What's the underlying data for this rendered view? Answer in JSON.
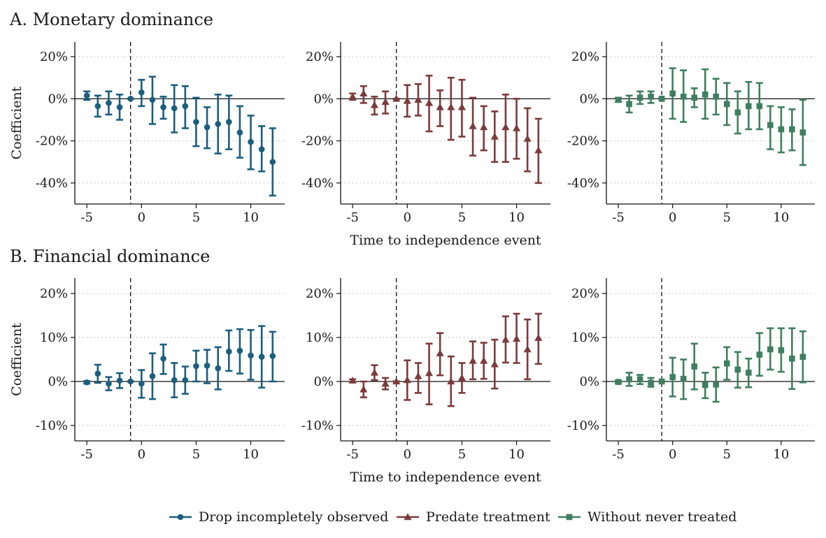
{
  "figure": {
    "panels": [
      {
        "label": "A. Monetary dominance",
        "xlabel": "Time to independence event",
        "ylabel": "Coefficient"
      },
      {
        "label": "B. Financial dominance",
        "xlabel": "Time to independence event",
        "ylabel": "Coefficient"
      }
    ],
    "legend": {
      "placement": "bottom-center",
      "items": [
        {
          "label": "Drop incompletely observed",
          "color": "#1b5e7e",
          "marker": "circle"
        },
        {
          "label": "Predate treatment",
          "color": "#7c3b3b",
          "marker": "triangle"
        },
        {
          "label": "Without never treated",
          "color": "#3f7f5f",
          "marker": "square"
        }
      ]
    }
  },
  "chart_data": [
    {
      "type": "scatter",
      "row": 0,
      "col": 0,
      "ylabel": "Coefficient",
      "xlabel": "",
      "xlim": [
        -6.1,
        13.1
      ],
      "ylim": [
        -50,
        27
      ],
      "xticks": [
        -5,
        0,
        5,
        10
      ],
      "yticks": [
        20,
        0,
        -20,
        -40
      ],
      "yticklabels": [
        "20%",
        "0%",
        "-20%",
        "-40%"
      ],
      "event_line_x": -1,
      "grid": "horizontal-dotted",
      "series": [
        {
          "name": "Drop incompletely observed",
          "color": "#1b5e7e",
          "marker": "circle",
          "x": [
            -5,
            -4,
            -3,
            -2,
            -1,
            0,
            1,
            2,
            3,
            4,
            5,
            6,
            7,
            8,
            9,
            10,
            11,
            12
          ],
          "y": [
            1.5,
            -3.5,
            -2,
            -4,
            0,
            3,
            -0.5,
            -4,
            -4.5,
            -3.5,
            -11,
            -13.5,
            -12,
            -11,
            -16,
            -20.5,
            -24,
            -30
          ],
          "lo": [
            -0.5,
            -8.5,
            -7.5,
            -10,
            0,
            -3.5,
            -12,
            -9.5,
            -16,
            -14,
            -22.5,
            -23.5,
            -26,
            -24,
            -28,
            -33.5,
            -34.5,
            -46
          ],
          "hi": [
            3.5,
            1.5,
            3.5,
            2,
            0,
            9,
            10.5,
            1,
            6.5,
            6,
            0.5,
            -4,
            2,
            1.5,
            -3.5,
            -8,
            -13,
            -14
          ]
        }
      ]
    },
    {
      "type": "scatter",
      "row": 0,
      "col": 1,
      "ylabel": "",
      "xlabel": "Time to independence event",
      "xlim": [
        -6.1,
        13.1
      ],
      "ylim": [
        -50,
        27
      ],
      "xticks": [
        -5,
        0,
        5,
        10
      ],
      "yticks": [
        20,
        0,
        -20,
        -40
      ],
      "yticklabels": [
        "20%",
        "0%",
        "-20%",
        "-40%"
      ],
      "event_line_x": -1,
      "grid": "horizontal-dotted",
      "series": [
        {
          "name": "Predate treatment",
          "color": "#7c3b3b",
          "marker": "triangle",
          "x": [
            -5,
            -4,
            -3,
            -2,
            -1,
            0,
            1,
            2,
            3,
            4,
            5,
            6,
            7,
            8,
            9,
            10,
            11,
            12
          ],
          "y": [
            1,
            2.5,
            -3,
            -1.5,
            0,
            -1,
            -0.5,
            -2,
            -4,
            -4,
            -4,
            -13,
            -13.5,
            -18,
            -13.5,
            -14,
            -19,
            -24.5
          ],
          "lo": [
            -0.5,
            -2,
            -7.5,
            -7,
            0,
            -8.5,
            -8,
            -15.5,
            -13,
            -19.5,
            -18,
            -27,
            -24.5,
            -30,
            -30,
            -28.5,
            -34.5,
            -40
          ],
          "hi": [
            2.5,
            6,
            1,
            3.5,
            0,
            6.5,
            7,
            11,
            4,
            10,
            9,
            0.5,
            -3.5,
            -6,
            2,
            0,
            -4.5,
            -9.5
          ]
        }
      ]
    },
    {
      "type": "scatter",
      "row": 0,
      "col": 2,
      "ylabel": "",
      "xlabel": "",
      "xlim": [
        -6.1,
        13.1
      ],
      "ylim": [
        -50,
        27
      ],
      "xticks": [
        -5,
        0,
        5,
        10
      ],
      "yticks": [
        20,
        0,
        -20,
        -40
      ],
      "yticklabels": [
        "20%",
        "0%",
        "-20%",
        "-40%"
      ],
      "event_line_x": -1,
      "grid": "horizontal-dotted",
      "series": [
        {
          "name": "Without never treated",
          "color": "#3f7f5f",
          "marker": "square",
          "x": [
            -5,
            -4,
            -3,
            -2,
            -1,
            0,
            1,
            2,
            3,
            4,
            5,
            6,
            7,
            8,
            9,
            10,
            11,
            12
          ],
          "y": [
            -0.5,
            -2.5,
            0.5,
            1,
            0,
            2.5,
            1,
            0.5,
            2,
            1,
            -2.5,
            -6.5,
            -3.5,
            -3.5,
            -12.5,
            -14.5,
            -14.5,
            -16
          ],
          "lo": [
            -1.5,
            -6.5,
            -2.5,
            -2,
            0,
            -9.5,
            -11,
            -4,
            -9.5,
            -7.5,
            -12.5,
            -16.5,
            -14.5,
            -14.5,
            -24,
            -25.5,
            -24.5,
            -31.5
          ],
          "hi": [
            0.5,
            1.5,
            3.5,
            3.5,
            0,
            14.5,
            13.5,
            5,
            14,
            9.5,
            7.5,
            3.5,
            8,
            7.5,
            -3.5,
            -4,
            -5,
            -0.5
          ]
        }
      ]
    },
    {
      "type": "scatter",
      "row": 1,
      "col": 0,
      "ylabel": "Coefficient",
      "xlabel": "",
      "xlim": [
        -6.1,
        13.1
      ],
      "ylim": [
        -13.5,
        23.5
      ],
      "xticks": [
        -5,
        0,
        5,
        10
      ],
      "yticks": [
        20,
        10,
        0,
        -10
      ],
      "yticklabels": [
        "20%",
        "10%",
        "0%",
        "-10%"
      ],
      "event_line_x": -1,
      "grid": "horizontal-dotted",
      "series": [
        {
          "name": "Drop incompletely observed",
          "color": "#1b5e7e",
          "marker": "circle",
          "x": [
            -5,
            -4,
            -3,
            -2,
            -1,
            0,
            1,
            2,
            3,
            4,
            5,
            6,
            7,
            8,
            9,
            10,
            11,
            12
          ],
          "y": [
            -0.2,
            1.8,
            -0.5,
            0.2,
            0,
            -0.5,
            1.2,
            5.2,
            0.3,
            0.3,
            3.5,
            3.6,
            3,
            6.8,
            7,
            5.9,
            5.6,
            5.8
          ],
          "lo": [
            -0.5,
            -0.3,
            -2,
            -1.5,
            0,
            -3.7,
            -4,
            1.7,
            -3.6,
            -2.8,
            0,
            -0.4,
            -1.8,
            2.4,
            1.8,
            0.4,
            -1.4,
            0
          ],
          "hi": [
            0.1,
            3.8,
            1,
            1.9,
            0,
            2.6,
            6.4,
            8.4,
            4.2,
            3.4,
            7,
            7.2,
            7.8,
            11.6,
            11.9,
            11.7,
            12.6,
            11.3
          ]
        }
      ]
    },
    {
      "type": "scatter",
      "row": 1,
      "col": 1,
      "ylabel": "",
      "xlabel": "Time to independence event",
      "xlim": [
        -6.1,
        13.1
      ],
      "ylim": [
        -13.5,
        23.5
      ],
      "xticks": [
        -5,
        0,
        5,
        10
      ],
      "yticks": [
        20,
        10,
        0,
        -10
      ],
      "yticklabels": [
        "20%",
        "10%",
        "0%",
        "-10%"
      ],
      "event_line_x": -1,
      "grid": "horizontal-dotted",
      "series": [
        {
          "name": "Predate treatment",
          "color": "#7c3b3b",
          "marker": "triangle",
          "x": [
            -5,
            -4,
            -3,
            -2,
            -1,
            0,
            1,
            2,
            3,
            4,
            5,
            6,
            7,
            8,
            9,
            10,
            11,
            12
          ],
          "y": [
            0.2,
            -1.8,
            2,
            -0.5,
            0,
            0.3,
            1.2,
            1.9,
            6.4,
            0,
            0.8,
            4.7,
            4.7,
            3.9,
            9.5,
            9.7,
            7.3,
            9.9
          ],
          "lo": [
            -0.1,
            -3.6,
            0.3,
            -1.8,
            0,
            -4.2,
            -2.6,
            -5.2,
            1.4,
            -5.6,
            -2.6,
            0.5,
            0.6,
            -1.6,
            4.3,
            4.2,
            0.5,
            4
          ],
          "hi": [
            0.5,
            0,
            3.7,
            0.8,
            0,
            4.8,
            4.2,
            8.6,
            11,
            5.7,
            4.2,
            9.1,
            8.8,
            9.5,
            14.8,
            15.4,
            14.1,
            15.4
          ]
        }
      ]
    },
    {
      "type": "scatter",
      "row": 1,
      "col": 2,
      "ylabel": "",
      "xlabel": "",
      "xlim": [
        -6.1,
        13.1
      ],
      "ylim": [
        -13.5,
        23.5
      ],
      "xticks": [
        -5,
        0,
        5,
        10
      ],
      "yticks": [
        20,
        10,
        0,
        -10
      ],
      "yticklabels": [
        "20%",
        "10%",
        "0%",
        "-10%"
      ],
      "event_line_x": -1,
      "grid": "horizontal-dotted",
      "series": [
        {
          "name": "Without never treated",
          "color": "#3f7f5f",
          "marker": "square",
          "x": [
            -5,
            -4,
            -3,
            -2,
            -1,
            0,
            1,
            2,
            3,
            4,
            5,
            6,
            7,
            8,
            9,
            10,
            11,
            12
          ],
          "y": [
            -0.1,
            0.5,
            0.5,
            -0.3,
            0,
            1,
            0.6,
            3.4,
            -0.8,
            -0.7,
            4.1,
            2.7,
            2,
            6.1,
            7.3,
            7.1,
            5.2,
            5.6
          ],
          "lo": [
            -0.4,
            -1,
            -0.6,
            -1.2,
            0,
            -3.4,
            -4,
            -1.8,
            -3.8,
            -4.6,
            0.4,
            -1.4,
            -1.3,
            1.3,
            2.7,
            2.2,
            -1.7,
            -0.2
          ],
          "hi": [
            0.2,
            2,
            1.5,
            0.8,
            0,
            5.4,
            5,
            8.6,
            2,
            3.2,
            7.8,
            6.7,
            5.2,
            11,
            12.1,
            12.1,
            12.1,
            11.4
          ]
        }
      ]
    }
  ]
}
